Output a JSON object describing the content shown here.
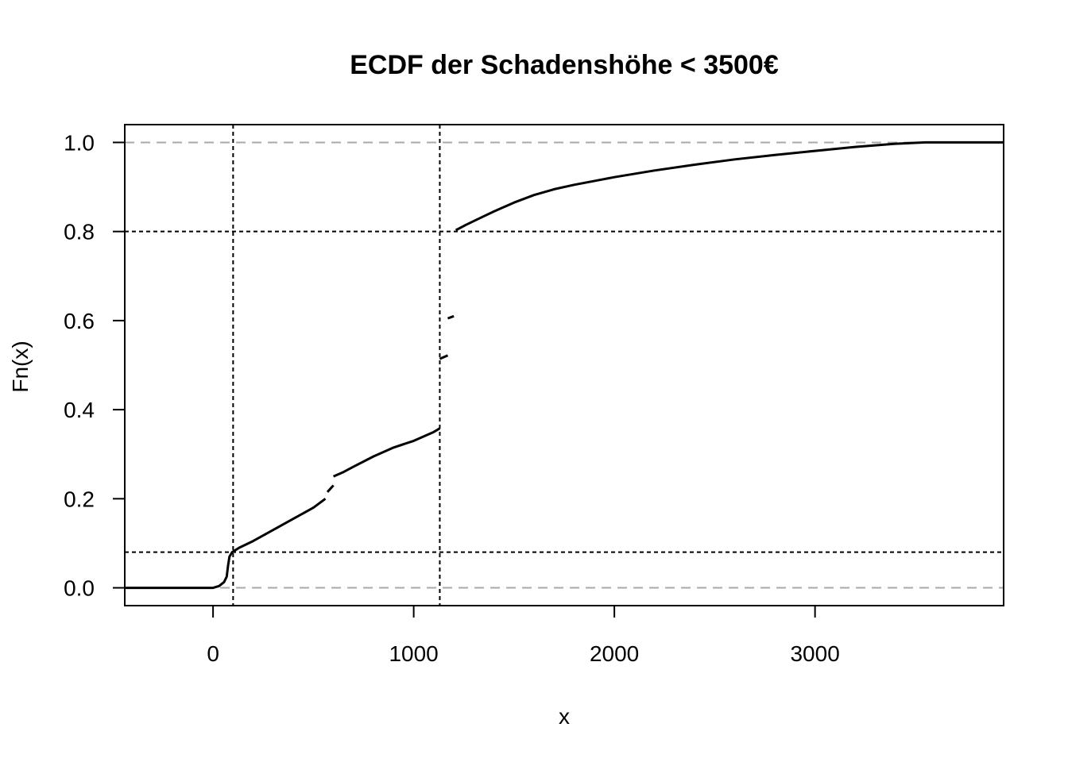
{
  "chart_data": {
    "type": "line",
    "title": "ECDF der Schadenshöhe < 3500€",
    "xlabel": "x",
    "ylabel": "Fn(x)",
    "xlim": [
      -440,
      3940
    ],
    "ylim": [
      -0.04,
      1.04
    ],
    "xticks": [
      0,
      1000,
      2000,
      3000
    ],
    "yticks": [
      0.0,
      0.2,
      0.4,
      0.6,
      0.8,
      1.0
    ],
    "xtick_labels": [
      "0",
      "1000",
      "2000",
      "3000"
    ],
    "ytick_labels": [
      "0.0",
      "0.2",
      "0.4",
      "0.6",
      "0.8",
      "1.0"
    ],
    "grid": false,
    "reference_lines": {
      "horizontal_gray": [
        0.0,
        1.0
      ],
      "horizontal_black": [
        0.08,
        0.8
      ],
      "vertical_black": [
        100,
        1130
      ]
    },
    "series": [
      {
        "segments": [
          [
            [
              -440,
              0.0
            ],
            [
              0,
              0.0
            ],
            [
              30,
              0.004
            ],
            [
              55,
              0.013
            ],
            [
              68,
              0.025
            ],
            [
              75,
              0.05
            ],
            [
              82,
              0.07
            ],
            [
              95,
              0.08
            ],
            [
              130,
              0.09
            ],
            [
              200,
              0.105
            ],
            [
              300,
              0.13
            ],
            [
              400,
              0.155
            ],
            [
              500,
              0.18
            ],
            [
              560,
              0.2
            ]
          ],
          [
            [
              570,
              0.215
            ],
            [
              600,
              0.23
            ]
          ],
          [
            [
              600,
              0.25
            ],
            [
              650,
              0.26
            ],
            [
              700,
              0.272
            ],
            [
              800,
              0.295
            ],
            [
              900,
              0.315
            ],
            [
              1000,
              0.33
            ],
            [
              1100,
              0.35
            ],
            [
              1130,
              0.358
            ]
          ],
          [
            [
              1130,
              0.514
            ],
            [
              1170,
              0.522
            ]
          ],
          [
            [
              1170,
              0.605
            ],
            [
              1200,
              0.61
            ]
          ],
          [
            [
              1210,
              0.803
            ],
            [
              1260,
              0.815
            ],
            [
              1330,
              0.83
            ],
            [
              1400,
              0.845
            ],
            [
              1500,
              0.865
            ],
            [
              1600,
              0.882
            ],
            [
              1700,
              0.895
            ],
            [
              1800,
              0.905
            ],
            [
              2000,
              0.922
            ],
            [
              2200,
              0.937
            ],
            [
              2400,
              0.95
            ],
            [
              2600,
              0.962
            ],
            [
              2800,
              0.972
            ],
            [
              3000,
              0.981
            ],
            [
              3200,
              0.99
            ],
            [
              3400,
              0.997
            ],
            [
              3550,
              1.0
            ],
            [
              3940,
              1.0
            ]
          ]
        ]
      }
    ]
  }
}
